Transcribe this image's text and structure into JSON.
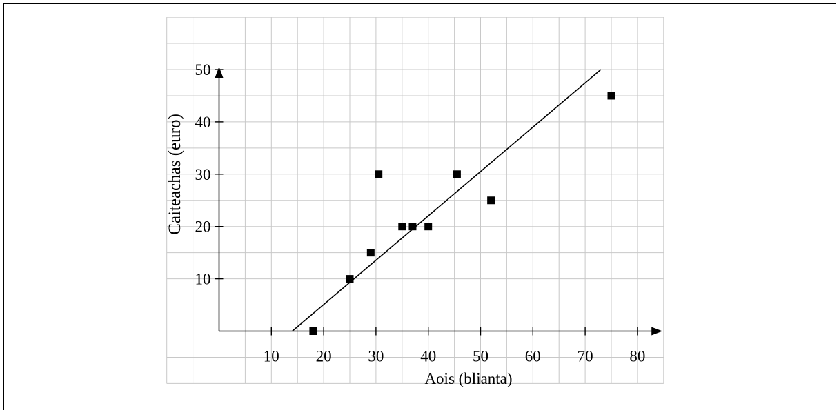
{
  "chart_data": {
    "type": "scatter",
    "title": "",
    "xlabel": "Aois (blianta)",
    "ylabel": "Caiteachas  (euro)",
    "xlim": [
      -10,
      85
    ],
    "ylim": [
      -10,
      60
    ],
    "axis_x_max": 84,
    "axis_y_max": 50,
    "x_ticks": [
      10,
      20,
      30,
      40,
      50,
      60,
      70,
      80
    ],
    "y_ticks": [
      10,
      20,
      30,
      40,
      50
    ],
    "grid": true,
    "grid_step": 5,
    "series": [
      {
        "points": [
          {
            "x": 18,
            "y": 0
          },
          {
            "x": 25,
            "y": 10
          },
          {
            "x": 29,
            "y": 15
          },
          {
            "x": 30.5,
            "y": 30
          },
          {
            "x": 35,
            "y": 20
          },
          {
            "x": 37,
            "y": 20
          },
          {
            "x": 40,
            "y": 20
          },
          {
            "x": 45.5,
            "y": 30
          },
          {
            "x": 52,
            "y": 25
          },
          {
            "x": 75,
            "y": 45
          }
        ]
      }
    ],
    "line_of_best_fit": {
      "x1": 14,
      "y1": 0,
      "x2": 73,
      "y2": 50
    }
  }
}
